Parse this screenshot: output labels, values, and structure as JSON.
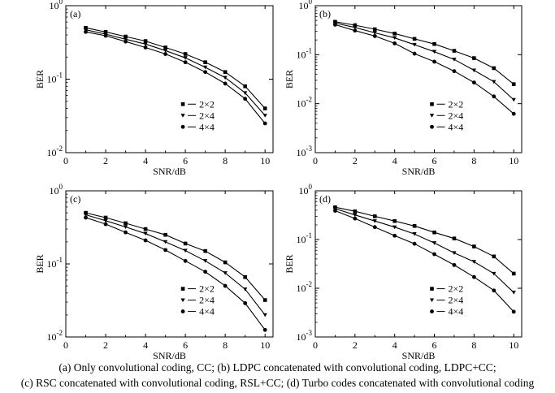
{
  "chart_data": [
    {
      "panel_label": "(a)",
      "type": "line",
      "xlabel": "SNR/dB",
      "ylabel": "BER",
      "log_y": true,
      "ylim_exp": [
        -2,
        0
      ],
      "x": [
        1,
        2,
        3,
        4,
        5,
        6,
        7,
        8,
        9,
        10
      ],
      "xticks": [
        0,
        2,
        4,
        6,
        8,
        10
      ],
      "xlim": [
        0,
        10.4
      ],
      "yticks": [
        {
          "base": "10",
          "exp": "0"
        },
        {
          "base": "10",
          "exp": "-1"
        },
        {
          "base": "10",
          "exp": "-2"
        }
      ],
      "legend_position": "center-right",
      "series": [
        {
          "name": "2×2",
          "marker": "square",
          "values": [
            0.5,
            0.44,
            0.38,
            0.33,
            0.27,
            0.22,
            0.17,
            0.125,
            0.08,
            0.04
          ]
        },
        {
          "name": "2×4",
          "marker": "triangle-down",
          "values": [
            0.47,
            0.41,
            0.35,
            0.3,
            0.245,
            0.195,
            0.145,
            0.105,
            0.065,
            0.032
          ]
        },
        {
          "name": "4×4",
          "marker": "circle",
          "values": [
            0.44,
            0.39,
            0.325,
            0.27,
            0.22,
            0.17,
            0.125,
            0.087,
            0.054,
            0.025
          ]
        }
      ]
    },
    {
      "panel_label": "(b)",
      "type": "line",
      "xlabel": "SNR/dB",
      "ylabel": "BER",
      "log_y": true,
      "ylim_exp": [
        -3,
        0
      ],
      "x": [
        1,
        2,
        3,
        4,
        5,
        6,
        7,
        8,
        9,
        10
      ],
      "xticks": [
        0,
        2,
        4,
        6,
        8,
        10
      ],
      "xlim": [
        0,
        10.4
      ],
      "yticks": [
        {
          "base": "10",
          "exp": "0"
        },
        {
          "base": "10",
          "exp": "-1"
        },
        {
          "base": "10",
          "exp": "-2"
        },
        {
          "base": "10",
          "exp": "-3"
        }
      ],
      "legend_position": "center-right",
      "series": [
        {
          "name": "2×2",
          "marker": "square",
          "values": [
            0.47,
            0.4,
            0.33,
            0.27,
            0.21,
            0.165,
            0.12,
            0.085,
            0.053,
            0.025
          ]
        },
        {
          "name": "2×4",
          "marker": "triangle-down",
          "values": [
            0.44,
            0.36,
            0.28,
            0.22,
            0.16,
            0.115,
            0.08,
            0.048,
            0.028,
            0.012
          ]
        },
        {
          "name": "4×4",
          "marker": "circle",
          "values": [
            0.41,
            0.31,
            0.24,
            0.17,
            0.105,
            0.072,
            0.046,
            0.027,
            0.014,
            0.0062
          ]
        }
      ]
    },
    {
      "panel_label": "(c)",
      "type": "line",
      "xlabel": "SNR/dB",
      "ylabel": "BER",
      "log_y": true,
      "ylim_exp": [
        -2,
        0
      ],
      "x": [
        1,
        2,
        3,
        4,
        5,
        6,
        7,
        8,
        9,
        10
      ],
      "xticks": [
        0,
        2,
        4,
        6,
        8,
        10
      ],
      "xlim": [
        0,
        10.4
      ],
      "yticks": [
        {
          "base": "10",
          "exp": "0"
        },
        {
          "base": "10",
          "exp": "-1"
        },
        {
          "base": "10",
          "exp": "-2"
        }
      ],
      "legend_position": "center-right",
      "series": [
        {
          "name": "2×2",
          "marker": "square",
          "values": [
            0.5,
            0.43,
            0.36,
            0.3,
            0.25,
            0.19,
            0.15,
            0.105,
            0.066,
            0.032
          ]
        },
        {
          "name": "2×4",
          "marker": "triangle-down",
          "values": [
            0.47,
            0.39,
            0.32,
            0.26,
            0.2,
            0.152,
            0.11,
            0.075,
            0.045,
            0.02
          ]
        },
        {
          "name": "4×4",
          "marker": "circle",
          "values": [
            0.43,
            0.35,
            0.27,
            0.21,
            0.155,
            0.11,
            0.078,
            0.05,
            0.029,
            0.0125
          ]
        }
      ]
    },
    {
      "panel_label": "(d)",
      "type": "line",
      "xlabel": "SNR/dB",
      "ylabel": "BER",
      "log_y": true,
      "ylim_exp": [
        -3,
        0
      ],
      "x": [
        1,
        2,
        3,
        4,
        5,
        6,
        7,
        8,
        9,
        10
      ],
      "xticks": [
        0,
        2,
        4,
        6,
        8,
        10
      ],
      "xlim": [
        0,
        10.4
      ],
      "yticks": [
        {
          "base": "10",
          "exp": "0"
        },
        {
          "base": "10",
          "exp": "-1"
        },
        {
          "base": "10",
          "exp": "-2"
        },
        {
          "base": "10",
          "exp": "-3"
        }
      ],
      "legend_position": "center-right",
      "series": [
        {
          "name": "2×2",
          "marker": "square",
          "values": [
            0.46,
            0.38,
            0.3,
            0.24,
            0.19,
            0.14,
            0.105,
            0.072,
            0.045,
            0.02
          ]
        },
        {
          "name": "2×4",
          "marker": "triangle-down",
          "values": [
            0.43,
            0.32,
            0.24,
            0.18,
            0.13,
            0.085,
            0.053,
            0.035,
            0.02,
            0.0082
          ]
        },
        {
          "name": "4×4",
          "marker": "circle",
          "values": [
            0.39,
            0.27,
            0.18,
            0.12,
            0.082,
            0.05,
            0.03,
            0.017,
            0.009,
            0.0033
          ]
        }
      ]
    }
  ],
  "caption": {
    "line1": "(a)  Only convolutional coding, CC; (b) LDPC concatenated with convolutional coding, LDPC+CC;",
    "line2": "(c) RSC concatenated with convolutional coding, RSL+CC; (d) Turbo codes concatenated with convolutional coding"
  }
}
